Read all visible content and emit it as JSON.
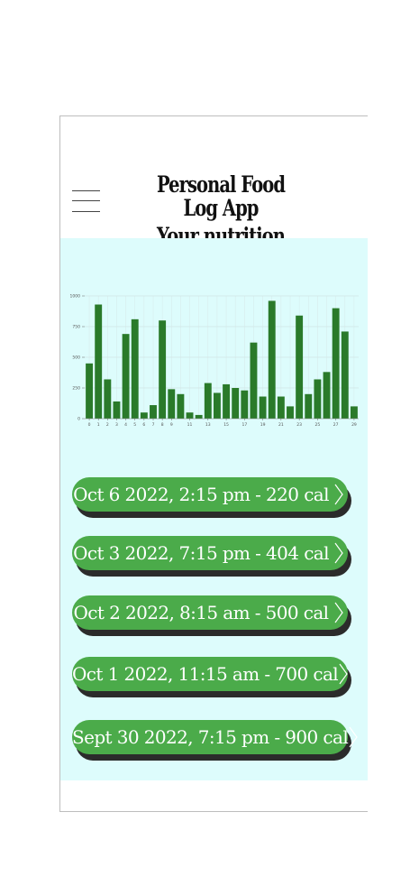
{
  "header": {
    "title": "Personal Food Log App",
    "subtitle": "Your nutrition partner",
    "menu_icon": "hamburger-menu-icon"
  },
  "colors": {
    "background": "#ddfcfc",
    "bar": "#2a7a2a",
    "entry_button": "#4bab4a",
    "entry_shadow": "#2b2b2b"
  },
  "chart_data": {
    "type": "bar",
    "categories": [
      "0",
      "1",
      "2",
      "3",
      "4",
      "5",
      "6",
      "7",
      "8",
      "9",
      "10",
      "11",
      "12",
      "13",
      "14",
      "15",
      "16",
      "17",
      "18",
      "19",
      "20",
      "21",
      "22",
      "23",
      "24",
      "25",
      "26",
      "27",
      "28",
      "29"
    ],
    "values": [
      450,
      930,
      320,
      140,
      690,
      810,
      50,
      110,
      800,
      240,
      200,
      50,
      30,
      290,
      210,
      280,
      250,
      230,
      620,
      180,
      960,
      180,
      100,
      840,
      200,
      320,
      380,
      900,
      710,
      100
    ],
    "x_tick_labels": [
      "0",
      "1",
      "2",
      "3",
      "4",
      "5",
      "6",
      "7",
      "8",
      "9",
      "11",
      "13",
      "15",
      "17",
      "19",
      "21",
      "23",
      "25",
      "27",
      "29"
    ],
    "y_tick_labels": [
      "0",
      "250",
      "500",
      "750",
      "1000"
    ],
    "ylim": [
      0,
      1000
    ],
    "grid": true
  },
  "entries": [
    {
      "label": "Oct 6 2022, 2:15 pm - 220 cal"
    },
    {
      "label": "Oct 3 2022, 7:15 pm - 404 cal"
    },
    {
      "label": "Oct 2 2022, 8:15 am - 500 cal"
    },
    {
      "label": "Oct 1 2022, 11:15 am - 700 cal"
    },
    {
      "label": "Sept 30 2022, 7:15 pm - 900 cal"
    }
  ]
}
